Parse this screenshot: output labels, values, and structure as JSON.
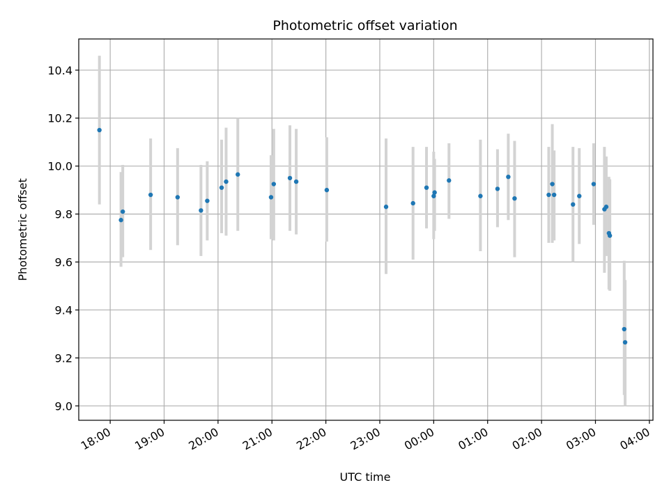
{
  "chart_data": {
    "type": "scatter",
    "title": "Photometric offset variation",
    "xlabel": "UTC time",
    "ylabel": "Photometric offset",
    "x_tick_labels": [
      "18:00",
      "19:00",
      "20:00",
      "21:00",
      "22:00",
      "23:00",
      "00:00",
      "01:00",
      "02:00",
      "03:00",
      "04:00"
    ],
    "y_ticks": [
      9.0,
      9.2,
      9.4,
      9.6,
      9.8,
      10.0,
      10.2,
      10.4
    ],
    "y_tick_labels": [
      "9.0",
      "9.2",
      "9.4",
      "9.6",
      "9.8",
      "10.0",
      "10.2",
      "10.4"
    ],
    "xlim": [
      "17:25",
      "04:04"
    ],
    "ylim": [
      8.94,
      10.53
    ],
    "grid": true,
    "colors": {
      "marker": "#1f77b4",
      "errorbar": "#d3d3d3",
      "grid": "#b0b0b0",
      "axes": "#000000"
    },
    "points": [
      {
        "t": "17:48",
        "y": 10.15,
        "lo": 9.84,
        "hi": 10.46
      },
      {
        "t": "18:12",
        "y": 9.775,
        "lo": 9.58,
        "hi": 9.975
      },
      {
        "t": "18:14",
        "y": 9.81,
        "lo": 9.62,
        "hi": 10.005
      },
      {
        "t": "18:45",
        "y": 9.88,
        "lo": 9.65,
        "hi": 10.115
      },
      {
        "t": "19:15",
        "y": 9.87,
        "lo": 9.67,
        "hi": 10.075
      },
      {
        "t": "19:41",
        "y": 9.815,
        "lo": 9.625,
        "hi": 10.005
      },
      {
        "t": "19:48",
        "y": 9.855,
        "lo": 9.69,
        "hi": 10.02
      },
      {
        "t": "20:04",
        "y": 9.91,
        "lo": 9.72,
        "hi": 10.11
      },
      {
        "t": "20:09",
        "y": 9.935,
        "lo": 9.71,
        "hi": 10.16
      },
      {
        "t": "20:22",
        "y": 9.965,
        "lo": 9.73,
        "hi": 10.2
      },
      {
        "t": "20:59",
        "y": 9.87,
        "lo": 9.695,
        "hi": 10.045
      },
      {
        "t": "21:02",
        "y": 9.925,
        "lo": 9.69,
        "hi": 10.155
      },
      {
        "t": "21:20",
        "y": 9.95,
        "lo": 9.73,
        "hi": 10.17
      },
      {
        "t": "21:27",
        "y": 9.935,
        "lo": 9.715,
        "hi": 10.155
      },
      {
        "t": "22:01",
        "y": 9.9,
        "lo": 9.685,
        "hi": 10.12
      },
      {
        "t": "23:07",
        "y": 9.83,
        "lo": 9.55,
        "hi": 10.115
      },
      {
        "t": "23:37",
        "y": 9.845,
        "lo": 9.61,
        "hi": 10.08
      },
      {
        "t": "23:52",
        "y": 9.91,
        "lo": 9.74,
        "hi": 10.08
      },
      {
        "t": "00:00",
        "y": 9.875,
        "lo": 9.695,
        "hi": 10.06
      },
      {
        "t": "00:01",
        "y": 9.89,
        "lo": 9.73,
        "hi": 10.03
      },
      {
        "t": "00:17",
        "y": 9.94,
        "lo": 9.78,
        "hi": 10.095
      },
      {
        "t": "00:52",
        "y": 9.875,
        "lo": 9.645,
        "hi": 10.11
      },
      {
        "t": "01:11",
        "y": 9.905,
        "lo": 9.745,
        "hi": 10.07
      },
      {
        "t": "01:23",
        "y": 9.955,
        "lo": 9.775,
        "hi": 10.135
      },
      {
        "t": "01:30",
        "y": 9.865,
        "lo": 9.62,
        "hi": 10.105
      },
      {
        "t": "02:08",
        "y": 9.88,
        "lo": 9.68,
        "hi": 10.08
      },
      {
        "t": "02:12",
        "y": 9.925,
        "lo": 9.68,
        "hi": 10.175
      },
      {
        "t": "02:14",
        "y": 9.88,
        "lo": 9.69,
        "hi": 10.065
      },
      {
        "t": "02:35",
        "y": 9.84,
        "lo": 9.6,
        "hi": 10.08
      },
      {
        "t": "02:42",
        "y": 9.875,
        "lo": 9.675,
        "hi": 10.075
      },
      {
        "t": "02:58",
        "y": 9.925,
        "lo": 9.755,
        "hi": 10.095
      },
      {
        "t": "03:10",
        "y": 9.82,
        "lo": 9.555,
        "hi": 10.08
      },
      {
        "t": "03:12",
        "y": 9.83,
        "lo": 9.625,
        "hi": 10.04
      },
      {
        "t": "03:15",
        "y": 9.72,
        "lo": 9.485,
        "hi": 9.955
      },
      {
        "t": "03:16",
        "y": 9.71,
        "lo": 9.48,
        "hi": 9.945
      },
      {
        "t": "03:32",
        "y": 9.32,
        "lo": 9.045,
        "hi": 9.605
      },
      {
        "t": "03:33",
        "y": 9.265,
        "lo": 9.0,
        "hi": 9.525
      }
    ]
  }
}
